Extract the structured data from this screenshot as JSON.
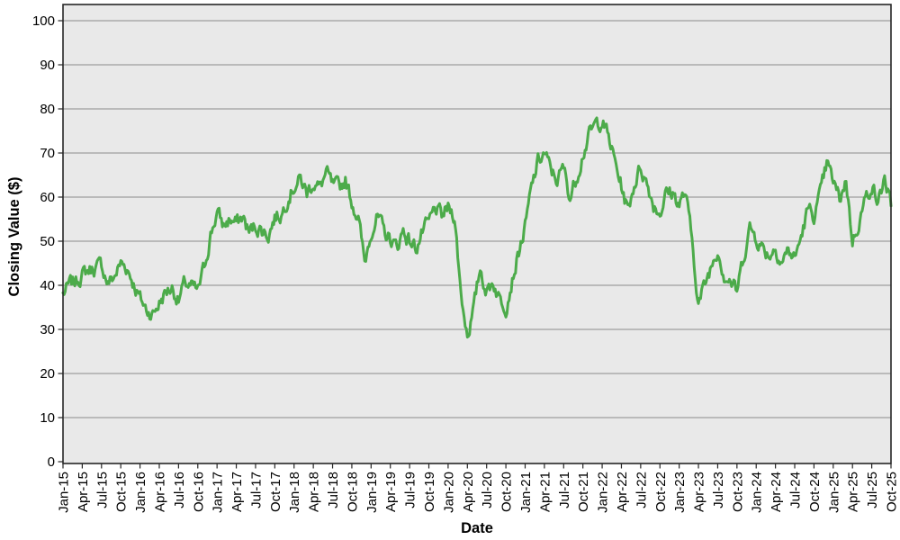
{
  "chart_data": {
    "type": "line",
    "title": "",
    "xlabel": "Date",
    "ylabel": "Closing Value ($)",
    "legend": "none",
    "grid": "horizontal",
    "ylim": [
      0,
      100
    ],
    "y_ticks": [
      0,
      10,
      20,
      30,
      40,
      50,
      60,
      70,
      80,
      90,
      100
    ],
    "x_tick_labels": [
      "Jan-15",
      "Apr-15",
      "Jul-15",
      "Oct-15",
      "Jan-16",
      "Apr-16",
      "Jul-16",
      "Oct-16",
      "Jan-17",
      "Apr-17",
      "Jul-17",
      "Oct-17",
      "Jan-18",
      "Apr-18",
      "Jul-18",
      "Oct-18",
      "Jan-19",
      "Apr-19",
      "Jul-19",
      "Oct-19",
      "Jan-20",
      "Apr-20",
      "Jul-20",
      "Oct-20",
      "Jan-21",
      "Apr-21",
      "Jul-21",
      "Oct-21",
      "Jan-22",
      "Apr-22",
      "Jul-22",
      "Oct-22",
      "Jan-23",
      "Apr-23",
      "Jul-23",
      "Oct-23",
      "Jan-24",
      "Apr-24",
      "Jul-24",
      "Oct-24",
      "Jan-25",
      "Apr-25",
      "Jul-25",
      "Oct-25"
    ],
    "x": {
      "start": "2015-01",
      "end": "2025-10",
      "step_months": 1,
      "count": 130
    },
    "series": [
      {
        "name": "Closing Value",
        "values": [
          38,
          40,
          41,
          42.5,
          43.5,
          44,
          44.5,
          40.5,
          42,
          45,
          44,
          40.5,
          37,
          34.5,
          33.5,
          36,
          38.5,
          39.5,
          36.5,
          40.5,
          39.5,
          38.5,
          44,
          51.5,
          56.5,
          53.5,
          55,
          54,
          55.5,
          52,
          53.5,
          52.5,
          51.5,
          55.5,
          56,
          60,
          62.5,
          64,
          61,
          63.5,
          62,
          65.5,
          62.5,
          62,
          64,
          59,
          55.5,
          45,
          52.5,
          55.5,
          52,
          50.5,
          48.5,
          52.5,
          50,
          48.5,
          52,
          54,
          57.5,
          55.5,
          57.5,
          56,
          38,
          29,
          34.5,
          44,
          38.5,
          41,
          37,
          35.5,
          41.5,
          47.5,
          53,
          62,
          68,
          70,
          66,
          64,
          66.5,
          60,
          64.5,
          70,
          74,
          76.5,
          77.5,
          73.5,
          68,
          62.5,
          57,
          63,
          67,
          63,
          58.5,
          56.5,
          61,
          61,
          58.5,
          61,
          50,
          36,
          40,
          44.5,
          48.5,
          42.5,
          41,
          38.5,
          46.5,
          53,
          51,
          48.5,
          47,
          48.5,
          45.5,
          48,
          46,
          51,
          57,
          56,
          60.5,
          67.5,
          63.5,
          59.5,
          64,
          50,
          54.5,
          59.5,
          63,
          58.5,
          64.5,
          58
        ]
      }
    ],
    "observed_extremes": {
      "max": 79,
      "max_at": "Jan-22",
      "min": 28,
      "min_at": "Apr-20"
    },
    "colors": {
      "line": "#4cab4a",
      "plot_background": "#e9e9e9",
      "gridline": "#8c8c8c",
      "frame": "#262626",
      "text": "#000000",
      "page_background": "#ffffff"
    }
  }
}
